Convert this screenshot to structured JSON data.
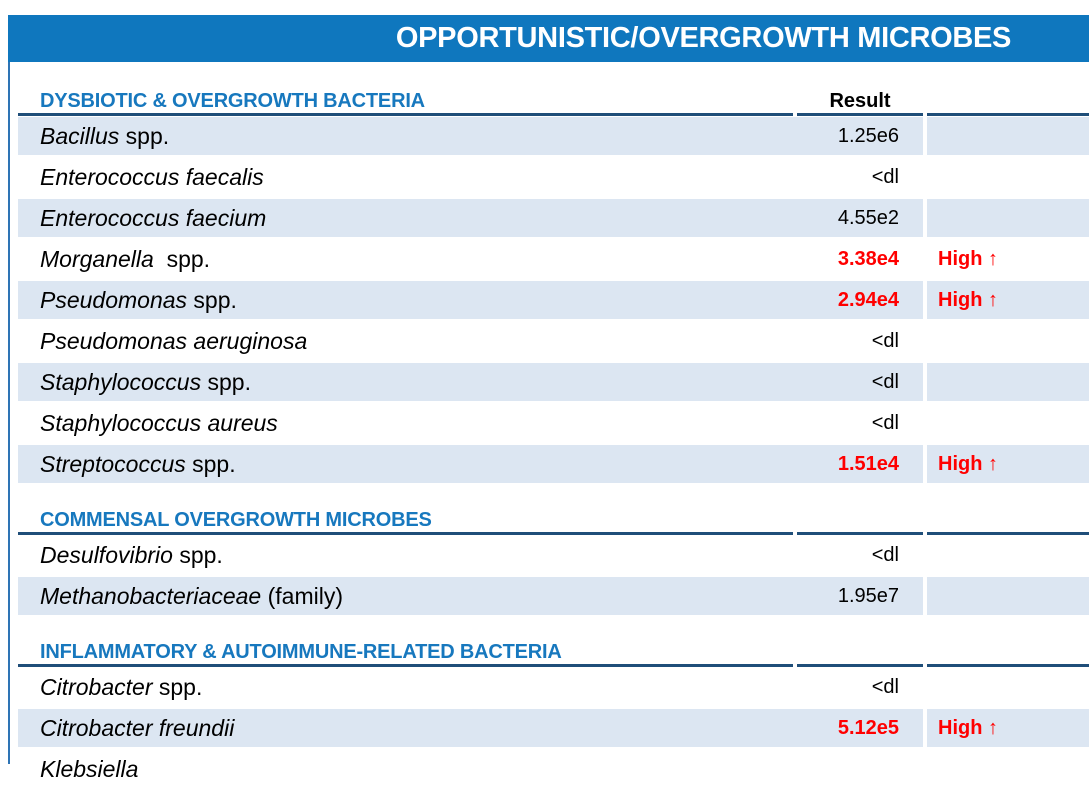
{
  "banner": {
    "title": "OPPORTUNISTIC/OVERGROWTH MICROBES"
  },
  "table": {
    "result_header": "Result"
  },
  "colors": {
    "banner_blue": "#0F77BE",
    "section_heading_blue": "#1778BE",
    "divider_navy": "#1F4E79",
    "row_shade_blue": "#DCE6F2",
    "alert_red": "#FF0000",
    "left_rule_blue": "#2E74B5"
  },
  "sections": [
    {
      "heading": "DYSBIOTIC & OVERGROWTH BACTERIA",
      "has_result_header": true,
      "rows": [
        {
          "organism_italic": "Bacillus",
          "organism_regular": " spp.",
          "result": "1.25e6",
          "flag": "",
          "high": false,
          "shaded": true
        },
        {
          "organism_italic": "Enterococcus faecalis",
          "organism_regular": "",
          "result": "<dl",
          "flag": "",
          "high": false,
          "shaded": false
        },
        {
          "organism_italic": "Enterococcus faecium",
          "organism_regular": "",
          "result": "4.55e2",
          "flag": "",
          "high": false,
          "shaded": true
        },
        {
          "organism_italic": "Morganella",
          "organism_regular": "  spp.",
          "result": "3.38e4",
          "flag": "High ↑",
          "high": true,
          "shaded": false
        },
        {
          "organism_italic": "Pseudomonas",
          "organism_regular": " spp.",
          "result": "2.94e4",
          "flag": "High ↑",
          "high": true,
          "shaded": true
        },
        {
          "organism_italic": "Pseudomonas aeruginosa",
          "organism_regular": "",
          "result": "<dl",
          "flag": "",
          "high": false,
          "shaded": false
        },
        {
          "organism_italic": "Staphylococcus",
          "organism_regular": " spp.",
          "result": "<dl",
          "flag": "",
          "high": false,
          "shaded": true
        },
        {
          "organism_italic": "Staphylococcus aureus",
          "organism_regular": "",
          "result": "<dl",
          "flag": "",
          "high": false,
          "shaded": false
        },
        {
          "organism_italic": "Streptococcus",
          "organism_regular": " spp.",
          "result": "1.51e4",
          "flag": "High ↑",
          "high": true,
          "shaded": true
        }
      ]
    },
    {
      "heading": "COMMENSAL OVERGROWTH MICROBES",
      "has_result_header": false,
      "rows": [
        {
          "organism_italic": "Desulfovibrio",
          "organism_regular": " spp.",
          "result": "<dl",
          "flag": "",
          "high": false,
          "shaded": false
        },
        {
          "organism_italic": "Methanobacteriaceae",
          "organism_regular": " (family)",
          "result": "1.95e7",
          "flag": "",
          "high": false,
          "shaded": true
        }
      ]
    },
    {
      "heading": "INFLAMMATORY & AUTOIMMUNE-RELATED BACTERIA",
      "has_result_header": false,
      "rows": [
        {
          "organism_italic": "Citrobacter",
          "organism_regular": " spp.",
          "result": "<dl",
          "flag": "",
          "high": false,
          "shaded": false
        },
        {
          "organism_italic": "Citrobacter freundii",
          "organism_regular": "",
          "result": "5.12e5",
          "flag": "High ↑",
          "high": true,
          "shaded": true
        },
        {
          "organism_italic": "Klebsiella",
          "organism_regular": "",
          "result": "",
          "flag": "",
          "high": false,
          "shaded": false
        }
      ]
    }
  ]
}
